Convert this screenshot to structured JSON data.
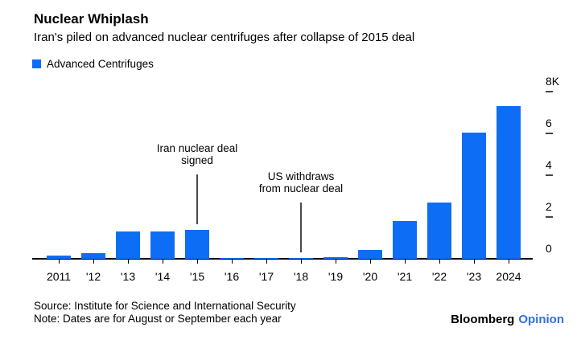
{
  "header": {
    "title": "Nuclear Whiplash",
    "subtitle": "Iran's piled on advanced nuclear centrifuges after collapse of 2015 deal"
  },
  "legend": {
    "label": "Advanced Centrifuges",
    "swatch_color": "#0d6ef5"
  },
  "chart_data": {
    "type": "bar",
    "title": "Nuclear Whiplash",
    "subtitle": "Iran's piled on advanced nuclear centrifuges after collapse of 2015 deal",
    "series_name": "Advanced Centrifuges",
    "categories": [
      "2011",
      "'12",
      "'13",
      "'14",
      "'15",
      "'16",
      "'17",
      "'18",
      "'19",
      "'20",
      "'21",
      "'22",
      "'23",
      "2024"
    ],
    "values": [
      150,
      270,
      1300,
      1300,
      1370,
      30,
      40,
      40,
      60,
      430,
      1800,
      2700,
      6050,
      7300
    ],
    "xlabel": "",
    "ylabel": "",
    "ylim": [
      0,
      8000
    ],
    "y_ticks": [
      {
        "value": 8000,
        "label": "8K"
      },
      {
        "value": 6000,
        "label": "6"
      },
      {
        "value": 4000,
        "label": "4"
      },
      {
        "value": 2000,
        "label": "2"
      },
      {
        "value": 0,
        "label": "0"
      }
    ],
    "grid": false,
    "legend_position": "top-left",
    "bar_color": "#0d6ef5",
    "annotation_line_color": "#4a4a4a",
    "annotations": [
      {
        "text_lines": [
          "Iran nuclear deal",
          "signed"
        ],
        "target_category": "'15"
      },
      {
        "text_lines": [
          "US withdraws",
          "from nuclear deal"
        ],
        "target_category": "'18"
      }
    ]
  },
  "footer": {
    "source": "Source: Institute for Science and International Security",
    "note": "Note: Dates are for August or September each year",
    "brand": {
      "bloomberg": "Bloomberg",
      "opinion": "Opinion",
      "bloomberg_color": "#000000",
      "opinion_color": "#2f6fed"
    }
  }
}
